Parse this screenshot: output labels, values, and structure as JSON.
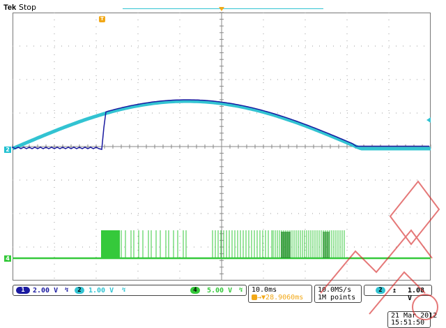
{
  "header": {
    "brand": "Tek",
    "status": "Stop"
  },
  "markers": {
    "trigger": "T",
    "ch2": "2",
    "ch4": "4"
  },
  "channels": [
    {
      "id": "1",
      "scale": "2.00 V",
      "color": "#1a1aa0"
    },
    {
      "id": "2",
      "scale": "1.00 V",
      "color": "#32c3d2"
    },
    {
      "id": "4",
      "scale": "5.00 V",
      "color": "#35c93b"
    }
  ],
  "timebase": {
    "scale": "10.0ms",
    "position": "28.9060ms"
  },
  "acquisition": {
    "rate": "10.0MS/s",
    "points": "1M points"
  },
  "trigger": {
    "source": "2",
    "level": "1.08 V"
  },
  "datetime": {
    "date": "21 Mar 2012",
    "time": "15:51:50"
  },
  "colors": {
    "grid": "#9a9a9a",
    "ch1": "#1a1aa0",
    "ch2": "#32c3d2",
    "ch4": "#35c93b",
    "trigger": "#f2a817"
  }
}
